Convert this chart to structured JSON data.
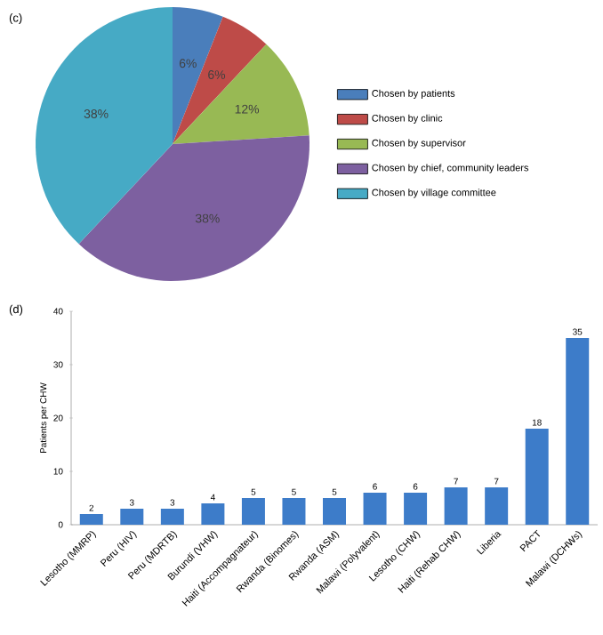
{
  "chart_data": [
    {
      "type": "pie",
      "title": "(c)",
      "categories": [
        "Chosen by patients",
        "Chosen by clinic",
        "Chosen by supervisor",
        "Chosen by chief,  community leaders",
        "Chosen by village committee"
      ],
      "values": [
        6,
        6,
        12,
        38,
        38
      ],
      "colors": [
        "#4a7ebb",
        "#be4b48",
        "#98b954",
        "#7d60a0",
        "#46aac5"
      ],
      "value_labels": [
        "6%",
        "6%",
        "12%",
        "38%",
        "38%"
      ],
      "legend": "right"
    },
    {
      "type": "bar",
      "title": "(d)",
      "ylabel": "Patients per CHW",
      "categories": [
        "Lesotho (MMRP)",
        "Peru (HIV)",
        "Peru (MDRTB)",
        "Burundi (VHW)",
        "Haiti (Accompagnateur)",
        "Rwanda (Binomes)",
        "Rwanda (ASM)",
        "Malawi (Polyvalent)",
        "Lesotho (CHW)",
        "Haiti (Rehab CHW)",
        "Liberia",
        "PACT",
        "Malawi (DCHWs)"
      ],
      "values": [
        2,
        3,
        3,
        4,
        5,
        5,
        5,
        6,
        6,
        7,
        7,
        18,
        35
      ],
      "color": "#3d7cc9",
      "ylim": [
        0,
        40
      ],
      "yticks": [
        0,
        10,
        20,
        30,
        40
      ],
      "data_labels": true,
      "grid": false
    }
  ]
}
